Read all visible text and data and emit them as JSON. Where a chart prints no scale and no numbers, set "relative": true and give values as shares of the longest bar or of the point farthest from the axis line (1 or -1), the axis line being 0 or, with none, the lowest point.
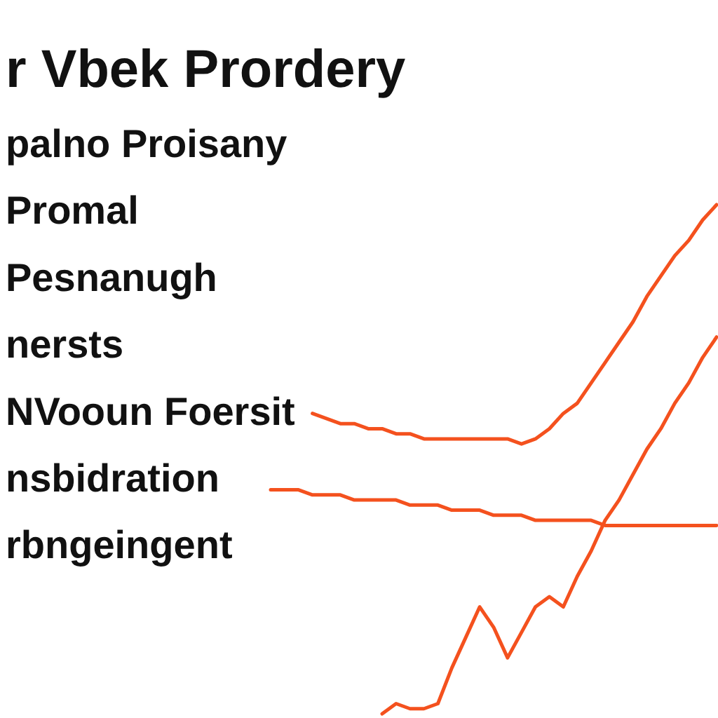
{
  "chart_data": {
    "type": "line",
    "title": "r Vbek Prordery",
    "relative": true,
    "annotations": [
      "palno Proisany",
      "Promal",
      "Pesnanugh",
      "nersts",
      "NVooun Foersit",
      "nsbidration",
      "rbngeingent"
    ],
    "categories": [
      null,
      null,
      null,
      null,
      null,
      null,
      null,
      null,
      null,
      null,
      null,
      null,
      null,
      null,
      null,
      null,
      null,
      null,
      null,
      null,
      null,
      null,
      null,
      null,
      null,
      null,
      null,
      null,
      null,
      null,
      null,
      null,
      null
    ],
    "series": [
      {
        "color": "#f4511e",
        "values": [
          null,
          null,
          null,
          0.59,
          0.58,
          0.57,
          0.57,
          0.56,
          0.56,
          0.55,
          0.55,
          0.54,
          0.54,
          0.54,
          0.54,
          0.54,
          0.54,
          0.54,
          0.53,
          0.54,
          0.56,
          0.59,
          0.61,
          0.65,
          0.69,
          0.73,
          0.77,
          0.82,
          0.86,
          0.9,
          0.93,
          0.97,
          1
        ]
      },
      {
        "color": "#f4511e",
        "values": [
          0.44,
          0.44,
          0.44,
          0.43,
          0.43,
          0.43,
          0.42,
          0.42,
          0.42,
          0.42,
          0.41,
          0.41,
          0.41,
          0.4,
          0.4,
          0.4,
          0.39,
          0.39,
          0.39,
          0.38,
          0.38,
          0.38,
          0.38,
          0.38,
          0.37,
          0.37,
          0.37,
          0.37,
          0.37,
          0.37,
          0.37,
          0.37,
          0.37
        ]
      },
      {
        "color": "#f4511e",
        "values": [
          null,
          null,
          null,
          null,
          null,
          null,
          null,
          null,
          0,
          0.02,
          0.01,
          0.01,
          0.02,
          0.09,
          0.15,
          0.21,
          0.17,
          0.11,
          0.16,
          0.21,
          0.23,
          0.21,
          0.27,
          0.32,
          0.38,
          0.42,
          0.47,
          0.52,
          0.56,
          0.61,
          0.65,
          0.7,
          0.74
        ]
      }
    ]
  }
}
